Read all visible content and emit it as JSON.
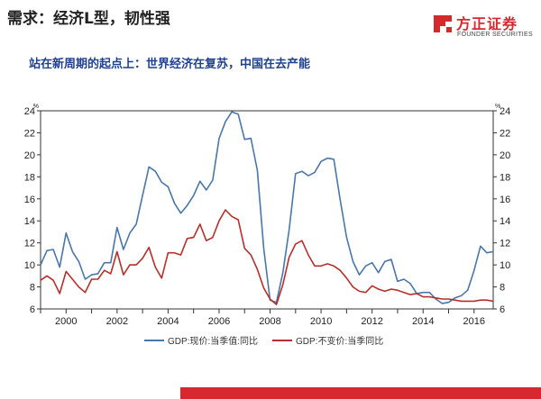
{
  "header": {
    "title": "需求：经济L型，韧性强",
    "subtitle": "站在新周期的起点上：世界经济在复苏，中国在去产能"
  },
  "brand": {
    "name": "方正证券",
    "sub": "FOUNDER SECURITIES"
  },
  "colors": {
    "brand_red": "#d7282f",
    "subtitle_blue": "#1f3f8f",
    "series_blue": "#4a76a8",
    "series_red": "#b5302c"
  },
  "chart_data": {
    "type": "line",
    "unit_label": "%",
    "ylim": [
      6,
      24
    ],
    "y_ticks": [
      6,
      8,
      10,
      12,
      14,
      16,
      18,
      20,
      22,
      24
    ],
    "xlim": [
      1999,
      2016.75
    ],
    "x_ticks": [
      2000,
      2002,
      2004,
      2006,
      2008,
      2010,
      2012,
      2014,
      2016
    ],
    "grid": false,
    "legend_position": "bottom",
    "series": [
      {
        "name": "GDP:现价:当季值:同比",
        "color": "#4a76a8",
        "points": [
          [
            1999.0,
            10.0
          ],
          [
            1999.25,
            11.3
          ],
          [
            1999.5,
            11.4
          ],
          [
            1999.75,
            9.8
          ],
          [
            2000.0,
            12.9
          ],
          [
            2000.25,
            11.2
          ],
          [
            2000.5,
            10.3
          ],
          [
            2000.75,
            8.7
          ],
          [
            2001.0,
            9.1
          ],
          [
            2001.25,
            9.2
          ],
          [
            2001.5,
            10.2
          ],
          [
            2001.75,
            10.2
          ],
          [
            2002.0,
            13.4
          ],
          [
            2002.25,
            11.4
          ],
          [
            2002.5,
            12.9
          ],
          [
            2002.75,
            13.7
          ],
          [
            2003.0,
            16.3
          ],
          [
            2003.25,
            18.9
          ],
          [
            2003.5,
            18.5
          ],
          [
            2003.75,
            17.5
          ],
          [
            2004.0,
            17.1
          ],
          [
            2004.25,
            15.6
          ],
          [
            2004.5,
            14.7
          ],
          [
            2004.75,
            15.4
          ],
          [
            2005.0,
            16.3
          ],
          [
            2005.25,
            17.6
          ],
          [
            2005.5,
            16.8
          ],
          [
            2005.75,
            17.7
          ],
          [
            2006.0,
            21.5
          ],
          [
            2006.25,
            23.0
          ],
          [
            2006.5,
            23.9
          ],
          [
            2006.75,
            23.7
          ],
          [
            2007.0,
            21.4
          ],
          [
            2007.25,
            21.5
          ],
          [
            2007.5,
            18.6
          ],
          [
            2007.75,
            11.5
          ],
          [
            2008.0,
            6.8
          ],
          [
            2008.25,
            6.6
          ],
          [
            2008.5,
            9.3
          ],
          [
            2008.75,
            13.2
          ],
          [
            2009.0,
            18.3
          ],
          [
            2009.25,
            18.5
          ],
          [
            2009.5,
            18.1
          ],
          [
            2009.75,
            18.4
          ],
          [
            2010.0,
            19.4
          ],
          [
            2010.25,
            19.7
          ],
          [
            2010.5,
            19.6
          ],
          [
            2010.75,
            15.9
          ],
          [
            2011.0,
            12.5
          ],
          [
            2011.25,
            10.3
          ],
          [
            2011.5,
            9.1
          ],
          [
            2011.75,
            9.9
          ],
          [
            2012.0,
            10.2
          ],
          [
            2012.25,
            9.3
          ],
          [
            2012.5,
            10.3
          ],
          [
            2012.75,
            10.5
          ],
          [
            2013.0,
            8.5
          ],
          [
            2013.25,
            8.7
          ],
          [
            2013.5,
            8.3
          ],
          [
            2013.75,
            7.4
          ],
          [
            2014.0,
            7.5
          ],
          [
            2014.25,
            7.5
          ],
          [
            2014.5,
            6.9
          ],
          [
            2014.75,
            6.5
          ],
          [
            2015.0,
            6.6
          ],
          [
            2015.25,
            7.0
          ],
          [
            2015.5,
            7.2
          ],
          [
            2015.75,
            7.7
          ],
          [
            2016.0,
            9.5
          ],
          [
            2016.25,
            11.7
          ],
          [
            2016.5,
            11.1
          ],
          [
            2016.75,
            11.2
          ]
        ]
      },
      {
        "name": "GDP:不变价:当季同比",
        "color": "#b5302c",
        "points": [
          [
            1999.0,
            8.6
          ],
          [
            1999.25,
            9.0
          ],
          [
            1999.5,
            8.6
          ],
          [
            1999.75,
            7.4
          ],
          [
            2000.0,
            9.4
          ],
          [
            2000.25,
            8.7
          ],
          [
            2000.5,
            8.0
          ],
          [
            2000.75,
            7.5
          ],
          [
            2001.0,
            8.7
          ],
          [
            2001.25,
            8.7
          ],
          [
            2001.5,
            9.5
          ],
          [
            2001.75,
            9.2
          ],
          [
            2002.0,
            11.2
          ],
          [
            2002.25,
            9.1
          ],
          [
            2002.5,
            10.0
          ],
          [
            2002.75,
            10.0
          ],
          [
            2003.0,
            10.6
          ],
          [
            2003.25,
            11.6
          ],
          [
            2003.5,
            9.8
          ],
          [
            2003.75,
            8.8
          ],
          [
            2004.0,
            11.1
          ],
          [
            2004.25,
            11.1
          ],
          [
            2004.5,
            10.9
          ],
          [
            2004.75,
            12.4
          ],
          [
            2005.0,
            12.5
          ],
          [
            2005.25,
            13.7
          ],
          [
            2005.5,
            12.2
          ],
          [
            2005.75,
            12.5
          ],
          [
            2006.0,
            14.0
          ],
          [
            2006.25,
            15.0
          ],
          [
            2006.5,
            14.4
          ],
          [
            2006.75,
            14.1
          ],
          [
            2007.0,
            11.5
          ],
          [
            2007.25,
            10.9
          ],
          [
            2007.5,
            9.6
          ],
          [
            2007.75,
            7.9
          ],
          [
            2008.0,
            6.9
          ],
          [
            2008.25,
            6.4
          ],
          [
            2008.5,
            8.2
          ],
          [
            2008.75,
            10.7
          ],
          [
            2009.0,
            11.9
          ],
          [
            2009.25,
            12.2
          ],
          [
            2009.5,
            10.9
          ],
          [
            2009.75,
            9.9
          ],
          [
            2010.0,
            9.9
          ],
          [
            2010.25,
            10.1
          ],
          [
            2010.5,
            9.9
          ],
          [
            2010.75,
            9.5
          ],
          [
            2011.0,
            8.8
          ],
          [
            2011.25,
            8.0
          ],
          [
            2011.5,
            7.6
          ],
          [
            2011.75,
            7.5
          ],
          [
            2012.0,
            8.1
          ],
          [
            2012.25,
            7.8
          ],
          [
            2012.5,
            7.6
          ],
          [
            2012.75,
            7.8
          ],
          [
            2013.0,
            7.7
          ],
          [
            2013.25,
            7.5
          ],
          [
            2013.5,
            7.3
          ],
          [
            2013.75,
            7.4
          ],
          [
            2014.0,
            7.1
          ],
          [
            2014.25,
            7.1
          ],
          [
            2014.5,
            7.0
          ],
          [
            2014.75,
            6.9
          ],
          [
            2015.0,
            6.9
          ],
          [
            2015.25,
            6.8
          ],
          [
            2015.5,
            6.7
          ],
          [
            2015.75,
            6.7
          ],
          [
            2016.0,
            6.7
          ],
          [
            2016.25,
            6.8
          ],
          [
            2016.5,
            6.8
          ],
          [
            2016.75,
            6.7
          ]
        ]
      }
    ]
  }
}
